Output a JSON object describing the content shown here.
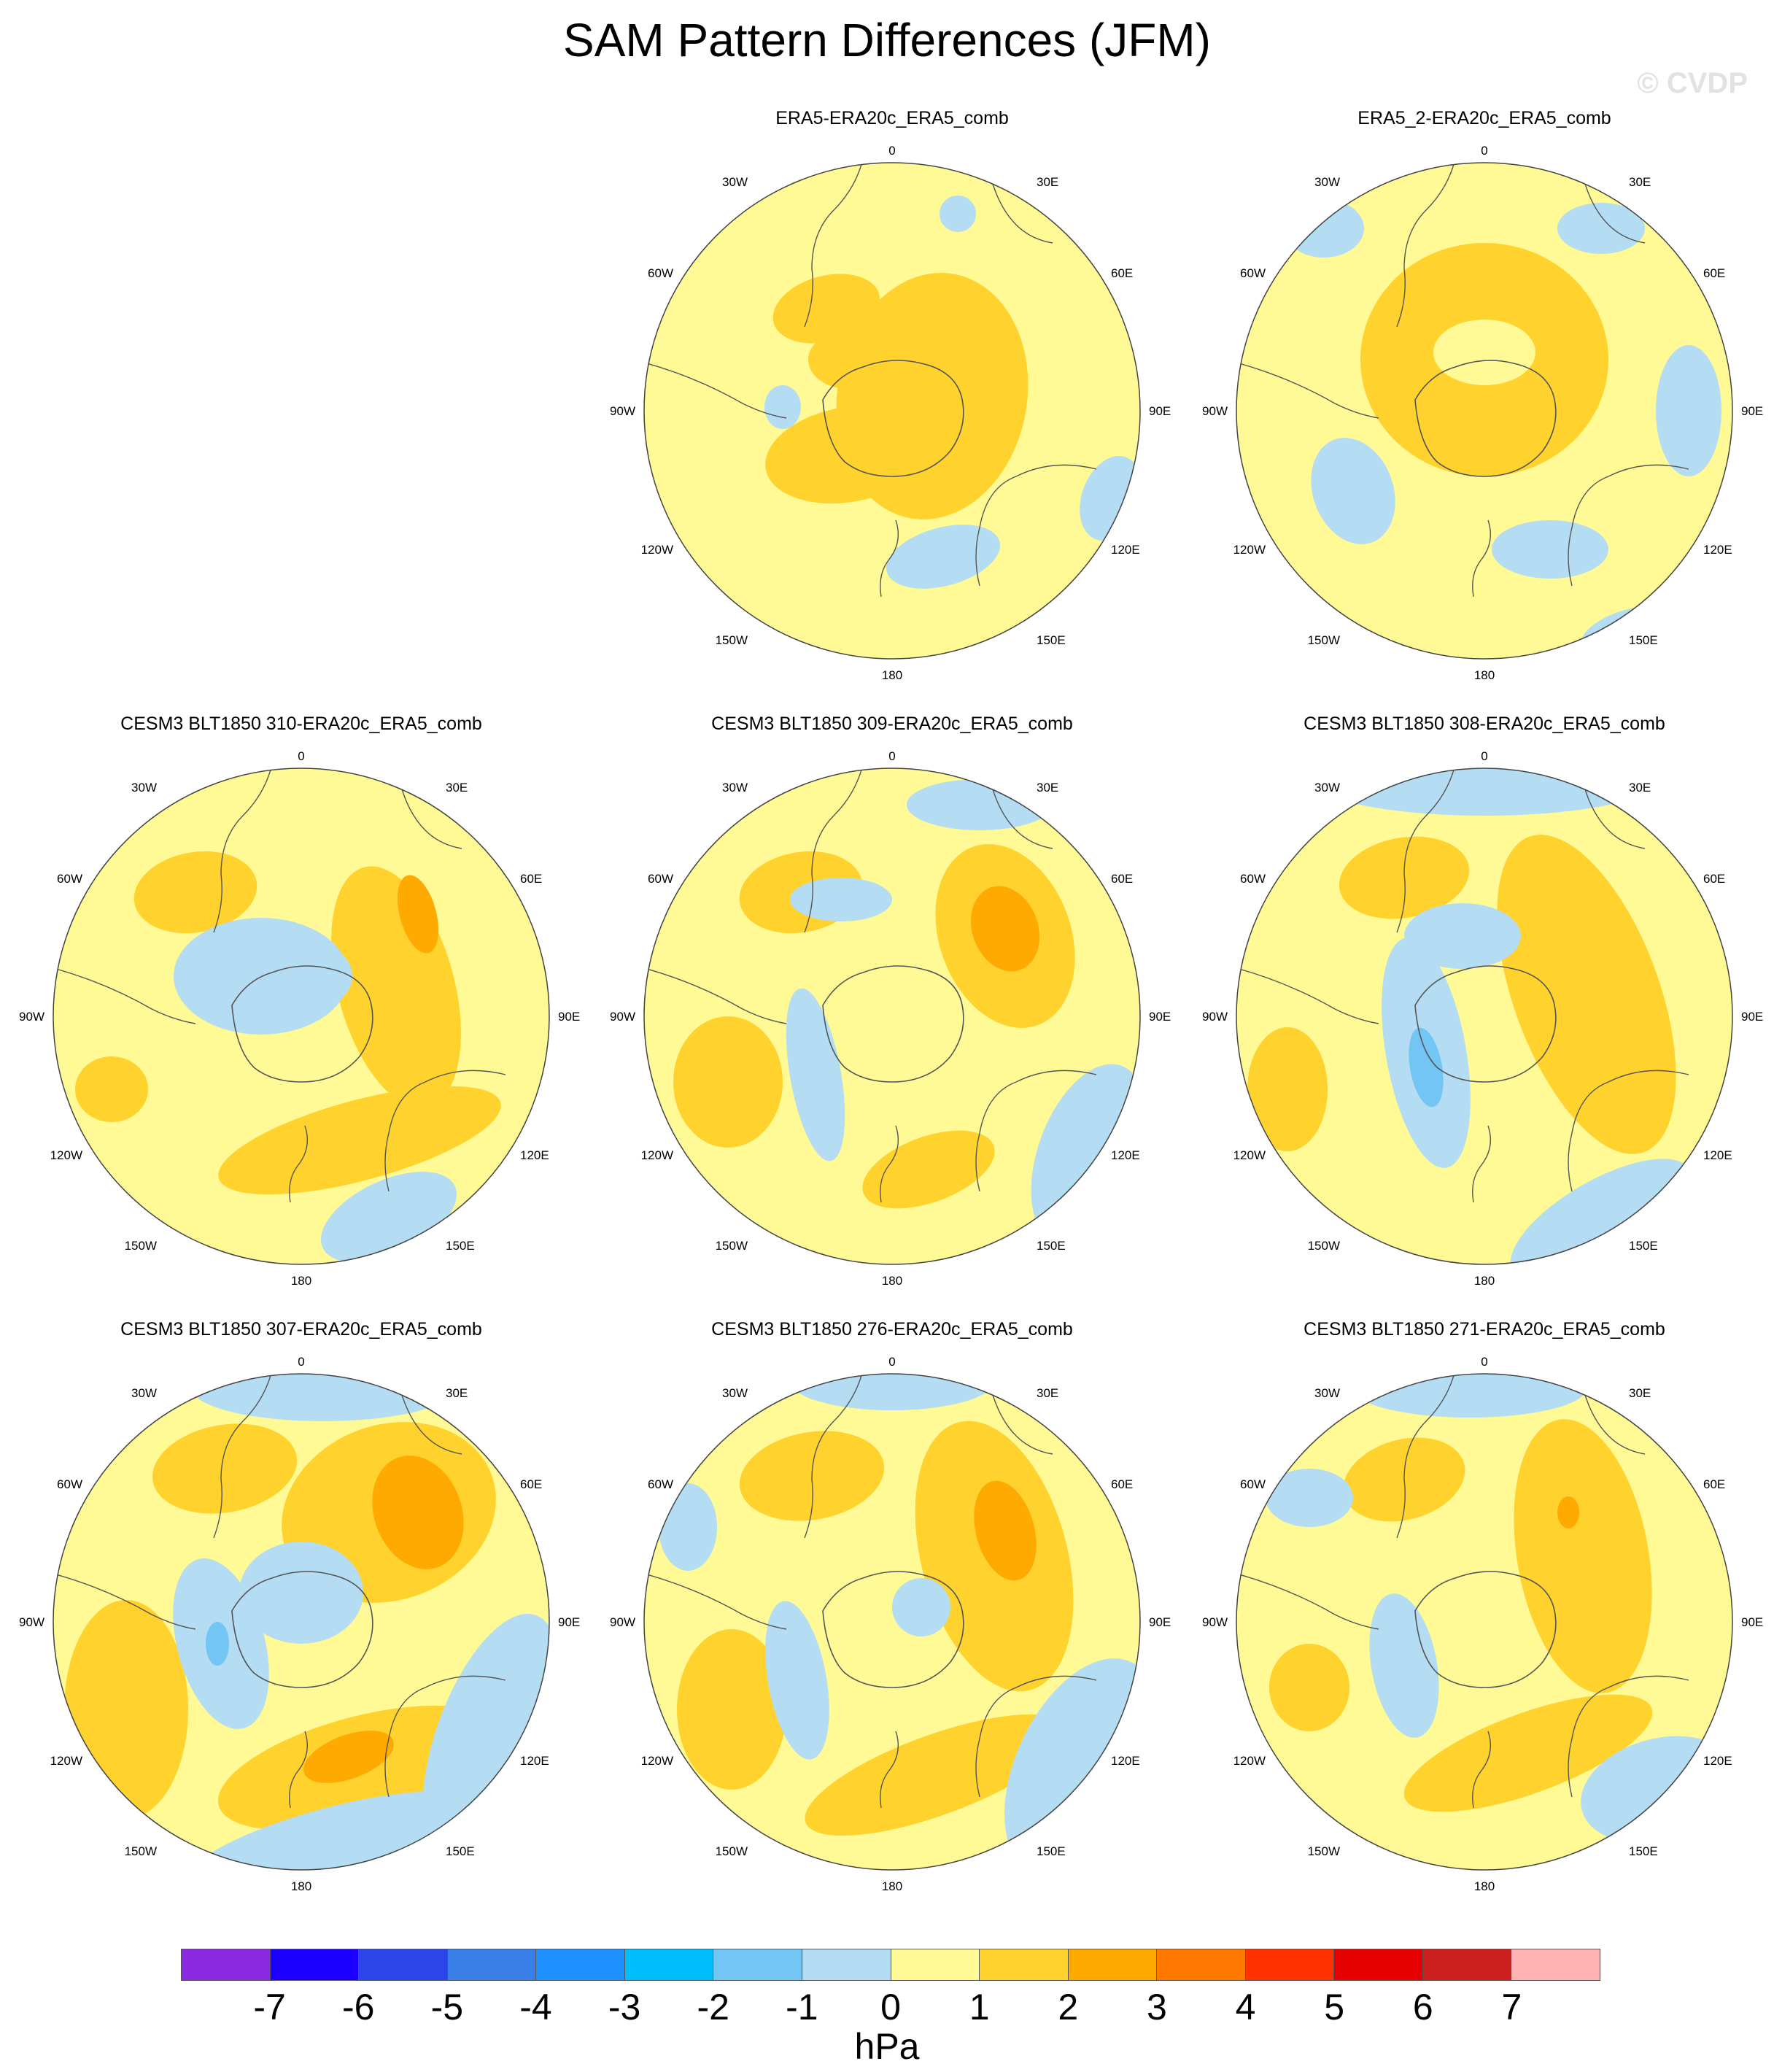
{
  "title": "SAM Pattern Differences (JFM)",
  "watermark": "© CVDP",
  "map_labels": {
    "top": "0",
    "bottom": "180",
    "left": "90W",
    "right": "90E",
    "nw1": "30W",
    "nw2": "60W",
    "sw1": "120W",
    "sw2": "150W",
    "ne1": "30E",
    "ne2": "60E",
    "se1": "120E",
    "se2": "150E"
  },
  "panels": [
    {
      "title": "ERA5-ERA20c_ERA5_comb"
    },
    {
      "title": "ERA5_2-ERA20c_ERA5_comb"
    },
    {
      "title": "CESM3 BLT1850 310-ERA20c_ERA5_comb"
    },
    {
      "title": "CESM3 BLT1850 309-ERA20c_ERA5_comb"
    },
    {
      "title": "CESM3 BLT1850 308-ERA20c_ERA5_comb"
    },
    {
      "title": "CESM3 BLT1850 307-ERA20c_ERA5_comb"
    },
    {
      "title": "CESM3 BLT1850 276-ERA20c_ERA5_comb"
    },
    {
      "title": "CESM3 BLT1850 271-ERA20c_ERA5_comb"
    }
  ],
  "colorbar": {
    "ticks": [
      "-7",
      "-6",
      "-5",
      "-4",
      "-3",
      "-2",
      "-1",
      "0",
      "1",
      "2",
      "3",
      "4",
      "5",
      "6",
      "7"
    ],
    "colors": [
      "#8a2be2",
      "#1b00ff",
      "#2b45e8",
      "#3a7ee8",
      "#1e90ff",
      "#00bfff",
      "#73c6f4",
      "#b4dcf2",
      "#fffa96",
      "#ffd22d",
      "#ffaa00",
      "#ff7800",
      "#ff3200",
      "#e60000",
      "#cd1e1e",
      "#ffb2b2"
    ],
    "units": "hPa"
  }
}
